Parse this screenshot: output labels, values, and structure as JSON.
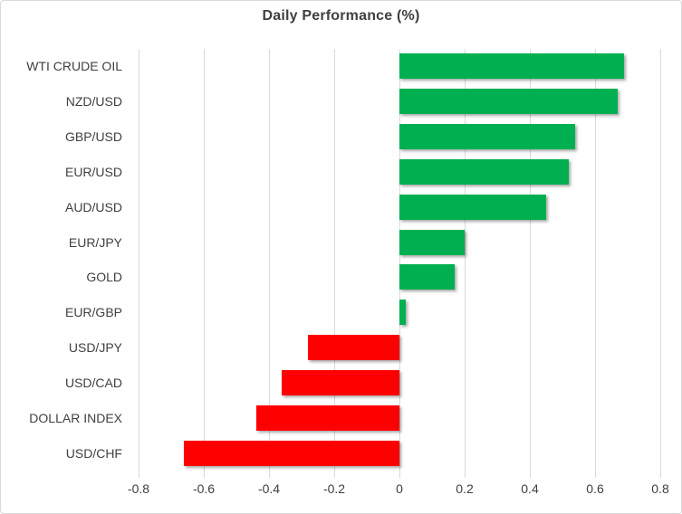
{
  "chart_data": {
    "type": "bar",
    "orientation": "horizontal",
    "title": "Daily Performance (%)",
    "categories": [
      "WTI CRUDE OIL",
      "NZD/USD",
      "GBP/USD",
      "EUR/USD",
      "AUD/USD",
      "EUR/JPY",
      "GOLD",
      "EUR/GBP",
      "USD/JPY",
      "USD/CAD",
      "DOLLAR INDEX",
      "USD/CHF"
    ],
    "values": [
      0.69,
      0.67,
      0.54,
      0.52,
      0.45,
      0.2,
      0.17,
      0.02,
      -0.28,
      -0.36,
      -0.44,
      -0.66
    ],
    "xlabel": "",
    "ylabel": "",
    "xlim": [
      -0.8,
      0.8
    ],
    "x_ticks": [
      "-0.8",
      "-0.6",
      "-0.4",
      "-0.2",
      "0",
      "0.2",
      "0.4",
      "0.6",
      "0.8"
    ],
    "grid": true,
    "legend": false,
    "colors": {
      "positive": "#00B050",
      "negative": "#FF0000",
      "gridline": "#D9D9D9",
      "text": "#404040",
      "border": "#D9D9D9",
      "background": "#FFFFFF"
    }
  }
}
